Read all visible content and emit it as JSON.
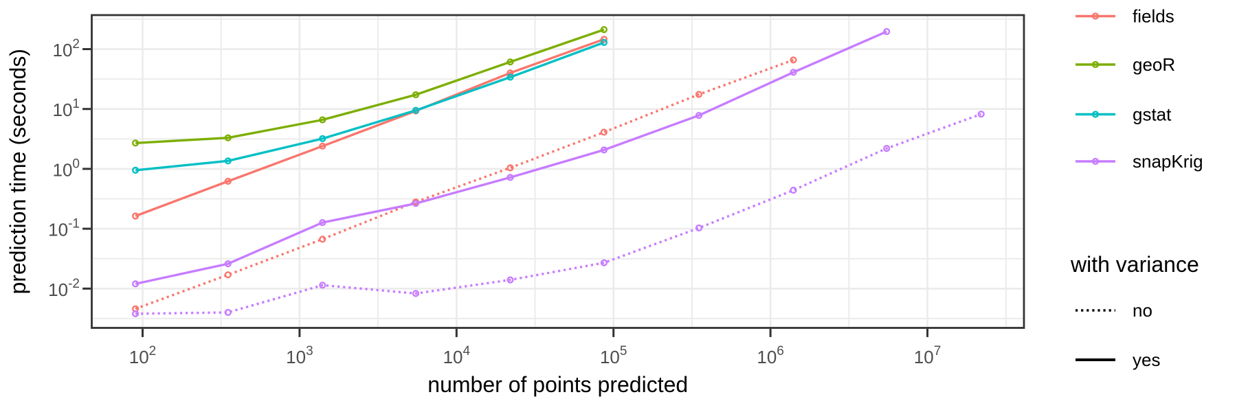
{
  "chart_data": {
    "type": "line",
    "title": "",
    "xlabel": "number of points predicted",
    "ylabel": "prediction time (seconds)",
    "x_scale": "log10",
    "y_scale": "log10",
    "tick_base": "10",
    "x_tick_exponents": [
      2,
      3,
      4,
      5,
      6,
      7
    ],
    "y_tick_exponents": [
      2,
      1,
      0,
      -1,
      -2
    ],
    "x_range_log": [
      1.676,
      7.615
    ],
    "y_range_log": [
      -2.656,
      2.568
    ],
    "grid": "on",
    "legend_position": "right",
    "series": [
      {
        "name": "fields",
        "with_variance": "no",
        "color": "#F8766D",
        "linetype": "dotted",
        "x": [
          90,
          350,
          1400,
          5500,
          22000,
          87000,
          350000,
          1400000
        ],
        "y": [
          0.0046,
          0.017,
          0.067,
          0.28,
          1.04,
          4.1,
          17.5,
          66
        ]
      },
      {
        "name": "fields",
        "with_variance": "yes",
        "color": "#F8766D",
        "linetype": "solid",
        "x": [
          90,
          350,
          1400,
          5500,
          22000,
          87000
        ],
        "y": [
          0.163,
          0.62,
          2.4,
          9.3,
          40,
          146
        ]
      },
      {
        "name": "geoR",
        "with_variance": "yes",
        "color": "#7CAE00",
        "linetype": "solid",
        "x": [
          90,
          350,
          1400,
          5500,
          22000,
          87000
        ],
        "y": [
          2.7,
          3.3,
          6.6,
          17.3,
          61,
          212
        ]
      },
      {
        "name": "gstat",
        "with_variance": "yes",
        "color": "#00BFC4",
        "linetype": "solid",
        "x": [
          90,
          350,
          1400,
          5500,
          22000,
          87000
        ],
        "y": [
          0.95,
          1.36,
          3.2,
          9.5,
          34,
          129
        ]
      },
      {
        "name": "snapKrig",
        "with_variance": "no",
        "color": "#C77CFF",
        "linetype": "dotted",
        "x": [
          90,
          350,
          1400,
          5500,
          22000,
          87000,
          350000,
          1400000,
          5500000,
          22000000
        ],
        "y": [
          0.0038,
          0.004,
          0.0114,
          0.0083,
          0.014,
          0.027,
          0.103,
          0.44,
          2.2,
          8.2
        ]
      },
      {
        "name": "snapKrig",
        "with_variance": "yes",
        "color": "#C77CFF",
        "linetype": "solid",
        "x": [
          90,
          350,
          1400,
          5500,
          22000,
          87000,
          350000,
          1400000,
          5500000
        ],
        "y": [
          0.012,
          0.026,
          0.127,
          0.264,
          0.72,
          2.07,
          7.8,
          41,
          196
        ]
      }
    ],
    "legend_color": {
      "items": [
        {
          "label": "fields",
          "color": "#F8766D"
        },
        {
          "label": "geoR",
          "color": "#7CAE00"
        },
        {
          "label": "gstat",
          "color": "#00BFC4"
        },
        {
          "label": "snapKrig",
          "color": "#C77CFF"
        }
      ]
    },
    "legend_linetype": {
      "title": "with variance",
      "items": [
        {
          "label": "no",
          "linetype": "dotted"
        },
        {
          "label": "yes",
          "linetype": "solid"
        }
      ]
    }
  },
  "style_colors": {
    "background": "#FFFFFF",
    "panel_background": "#FFFFFF",
    "grid_major": "#EBEBEB",
    "grid_minor": "#EBEBEB",
    "panel_border": "#333333",
    "tick_mark": "#333333",
    "tick_label": "#4D4D4D",
    "axis_title": "#000000",
    "legend_text": "#000000",
    "legend_key_line": "#000000"
  }
}
